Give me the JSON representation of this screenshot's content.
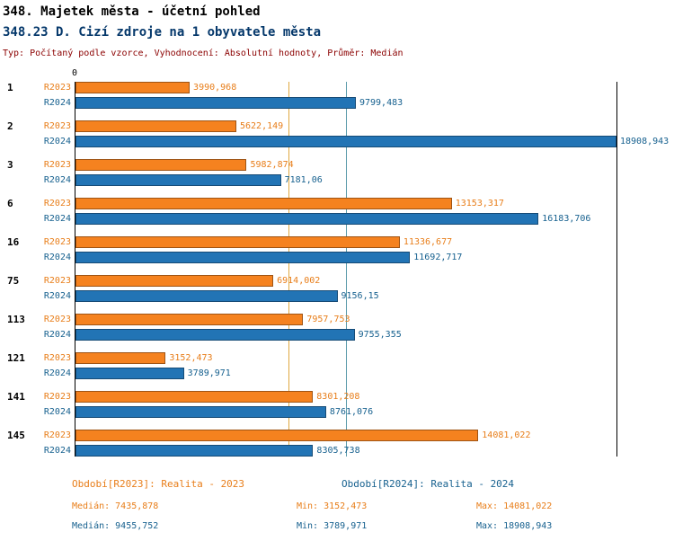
{
  "header": {
    "title1": "348. Majetek města - účetní pohled",
    "title2": "348.23 D. Cizí zdroje na 1 obyvatele města",
    "subtitle": "Typ: Počítaný podle vzorce, Vyhodnocení: Absolutní hodnoty, Průměr: Medián"
  },
  "colors": {
    "title_blue": "#05386B",
    "meta_red": "#8B0000",
    "r2023_bar": "#F5821F",
    "r2023_text": "#E87E1A",
    "r2024_bar": "#2274B5",
    "r2024_text": "#17618F",
    "median_2023_line": "#DFA941",
    "median_2024_line": "#5B9BAB",
    "axis": "#000000"
  },
  "chart_data": {
    "type": "bar",
    "orientation": "horizontal",
    "title": "348.23 D. Cizí zdroje na 1 obyvatele města",
    "xlabel": "",
    "ylabel": "",
    "xlim": [
      0,
      18908.943
    ],
    "x_zero_label": "0",
    "grid": false,
    "categories": [
      "1",
      "2",
      "3",
      "6",
      "16",
      "75",
      "113",
      "121",
      "141",
      "145"
    ],
    "series": [
      {
        "name": "R2023",
        "color": "#F5821F",
        "label_color": "#E87E1A",
        "values": [
          3990.968,
          5622.149,
          5982.874,
          13153.317,
          11336.677,
          6914.002,
          7957.753,
          3152.473,
          8301.208,
          14081.022
        ],
        "value_labels": [
          "3990,968",
          "5622,149",
          "5982,874",
          "13153,317",
          "11336,677",
          "6914,002",
          "7957,753",
          "3152,473",
          "8301,208",
          "14081,022"
        ]
      },
      {
        "name": "R2024",
        "color": "#2274B5",
        "label_color": "#17618F",
        "values": [
          9799.483,
          18908.943,
          7181.06,
          16183.706,
          11692.717,
          9156.15,
          9755.355,
          3789.971,
          8761.076,
          8305.738
        ],
        "value_labels": [
          "9799,483",
          "18908,943",
          "7181,06",
          "16183,706",
          "11692,717",
          "9156,15",
          "9755,355",
          "3789,971",
          "8761,076",
          "8305,738"
        ]
      }
    ],
    "reference_lines": [
      {
        "name": "median-r2023",
        "value": 7435.878,
        "color": "#DFA941"
      },
      {
        "name": "median-r2024",
        "value": 9455.752,
        "color": "#5B9BAB"
      }
    ],
    "legend_position": "bottom"
  },
  "legend": {
    "r2023": "Období[R2023]: Realita - 2023",
    "r2024": "Období[R2024]: Realita - 2024"
  },
  "stats": {
    "r2023": {
      "median": "Medián: 7435,878",
      "min": "Min: 3152,473",
      "max": "Max: 14081,022"
    },
    "r2024": {
      "median": "Medián: 9455,752",
      "min": "Min: 3789,971",
      "max": "Max: 18908,943"
    }
  }
}
